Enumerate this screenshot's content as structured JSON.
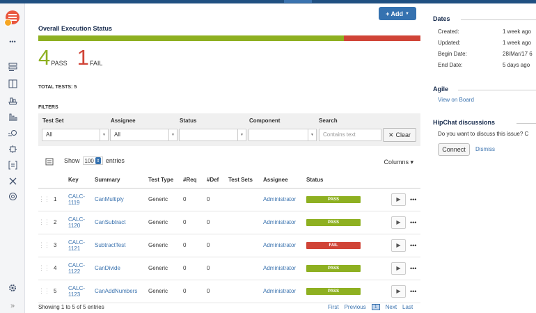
{
  "sidebar": {
    "items": [
      "more-icon",
      "backlog-icon",
      "board-icon",
      "releases-icon",
      "reports-icon",
      "tests-icon",
      "components-icon",
      "add-ons-icon",
      "cross-icon",
      "settings-icon"
    ],
    "footer_icons": [
      "gear-icon",
      "expand-icon"
    ],
    "more_glyph": "•••",
    "expand_glyph": "»"
  },
  "main": {
    "add_button": "+ Add",
    "execution_title": "Overall Execution Status",
    "pass_count": "4",
    "pass_label": "PASS",
    "fail_count": "1",
    "fail_label": "FAIL",
    "pass_fraction": 0.8,
    "total_tests": "TOTAL TESTS: 5",
    "filters_title": "FILTERS",
    "filters": {
      "test_set_label": "Test Set",
      "assignee_label": "Assignee",
      "status_label": "Status",
      "component_label": "Component",
      "search_label": "Search",
      "test_set_value": "All",
      "assignee_value": "All",
      "status_value": "",
      "component_value": "",
      "search_placeholder": "Contains text",
      "clear_label": "Clear"
    },
    "table_tools": {
      "show_label": "Show",
      "show_value": "100",
      "entries_label": "entries",
      "columns_label": "Columns ▾"
    },
    "table": {
      "headers": [
        "Key",
        "Summary",
        "Test Type",
        "#Req",
        "#Def",
        "Test Sets",
        "Assignee",
        "Status"
      ],
      "rows": [
        {
          "index": "1",
          "key": "CALC-1119",
          "summary": "CanMultiply",
          "type": "Generic",
          "req": "0",
          "def": "0",
          "sets": "",
          "assignee": "Administrator",
          "status": "PASS"
        },
        {
          "index": "2",
          "key": "CALC-1120",
          "summary": "CanSubtract",
          "type": "Generic",
          "req": "0",
          "def": "0",
          "sets": "",
          "assignee": "Administrator",
          "status": "PASS"
        },
        {
          "index": "3",
          "key": "CALC-1121",
          "summary": "SubtractTest",
          "type": "Generic",
          "req": "0",
          "def": "0",
          "sets": "",
          "assignee": "Administrator",
          "status": "FAIL"
        },
        {
          "index": "4",
          "key": "CALC-1122",
          "summary": "CanDivide",
          "type": "Generic",
          "req": "0",
          "def": "0",
          "sets": "",
          "assignee": "Administrator",
          "status": "PASS"
        },
        {
          "index": "5",
          "key": "CALC-1123",
          "summary": "CanAddNumbers",
          "type": "Generic",
          "req": "0",
          "def": "0",
          "sets": "",
          "assignee": "Administrator",
          "status": "PASS"
        }
      ]
    },
    "footer": {
      "info": "Showing 1 to 5 of 5 entries",
      "first": "First",
      "previous": "Previous",
      "page": "1",
      "next": "Next",
      "last": "Last"
    }
  },
  "right": {
    "dates_title": "Dates",
    "created_label": "Created:",
    "created_value": "1 week ago",
    "updated_label": "Updated:",
    "updated_value": "1 week ago",
    "begin_label": "Begin Date:",
    "begin_value": "28/Mar/17 6",
    "end_label": "End Date:",
    "end_value": "5 days ago",
    "agile_title": "Agile",
    "view_board": "View on Board",
    "hipchat_title": "HipChat discussions",
    "hipchat_question": "Do you want to discuss this issue? C",
    "connect": "Connect",
    "dismiss": "Dismiss"
  },
  "colors": {
    "pass": "#8eb021",
    "fail": "#d04437",
    "accent": "#3572b0",
    "link": "#3b73af"
  }
}
